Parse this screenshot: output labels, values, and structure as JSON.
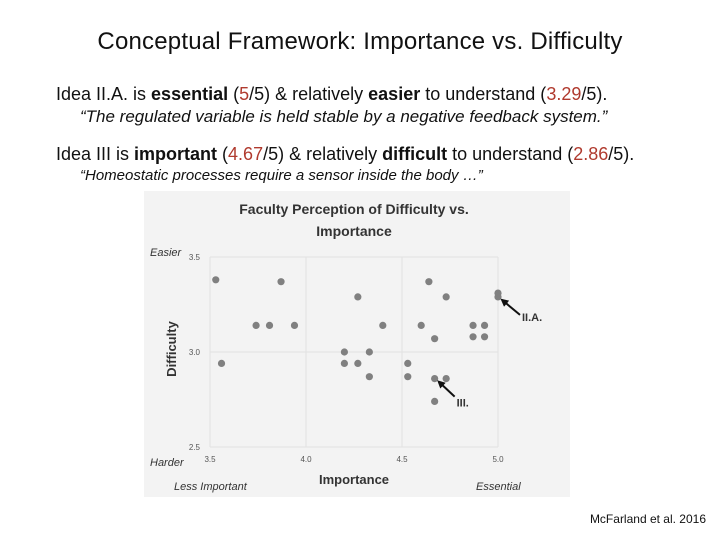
{
  "slide": {
    "title": "Conceptual Framework:  Importance vs. Difficulty",
    "line1": {
      "pre": "Idea II.A. is ",
      "w1": "essential",
      "p1": " (",
      "v1": "5",
      "s1": "/5) & relatively ",
      "w2": "easier",
      "p2": " to understand (",
      "v2": "3.29",
      "s2": "/5)."
    },
    "quote1": "“The regulated variable is held stable by a negative feedback system.”",
    "line2": {
      "pre": "Idea III is ",
      "w1": "important",
      "p1": " (",
      "v1": "4.67",
      "s1": "/5) & relatively ",
      "w2": "difficult",
      "p2": " to understand (",
      "v2": "2.86",
      "s2": "/5)."
    },
    "quote2": "“Homeostatic processes require a sensor inside the body …”",
    "citation": "McFarland et al. 2016",
    "highlight_color": "#b03a2e"
  },
  "chart_data": {
    "type": "scatter",
    "title": [
      "Faculty Perception of Difficulty vs.",
      "Importance"
    ],
    "xlabel": "Importance",
    "ylabel": "Difficulty",
    "xlim": [
      3.5,
      5.0
    ],
    "ylim": [
      2.5,
      3.5
    ],
    "xticks": [
      "3.5",
      "4.0",
      "4.5",
      "5.0"
    ],
    "yticks": [
      "3.5",
      "3.0",
      "2.5"
    ],
    "corner_labels": {
      "top_left": "Easier",
      "bottom_left": "Harder",
      "bottom_x_left": "Less Important",
      "bottom_x_right": "Essential"
    },
    "grid": true,
    "point_color": "#808080",
    "points": [
      {
        "x": 3.53,
        "y": 3.38
      },
      {
        "x": 3.56,
        "y": 2.94
      },
      {
        "x": 3.74,
        "y": 3.14
      },
      {
        "x": 3.81,
        "y": 3.14
      },
      {
        "x": 3.87,
        "y": 3.37
      },
      {
        "x": 3.94,
        "y": 3.14
      },
      {
        "x": 4.2,
        "y": 3.0
      },
      {
        "x": 4.2,
        "y": 2.94
      },
      {
        "x": 4.27,
        "y": 3.29
      },
      {
        "x": 4.27,
        "y": 2.94
      },
      {
        "x": 4.33,
        "y": 3.0
      },
      {
        "x": 4.33,
        "y": 2.87
      },
      {
        "x": 4.4,
        "y": 3.14
      },
      {
        "x": 4.53,
        "y": 2.94
      },
      {
        "x": 4.53,
        "y": 2.87
      },
      {
        "x": 4.6,
        "y": 3.14
      },
      {
        "x": 4.64,
        "y": 3.37
      },
      {
        "x": 4.67,
        "y": 3.07
      },
      {
        "x": 4.67,
        "y": 2.86
      },
      {
        "x": 4.67,
        "y": 2.74
      },
      {
        "x": 4.73,
        "y": 3.29
      },
      {
        "x": 4.73,
        "y": 2.86
      },
      {
        "x": 4.87,
        "y": 3.14
      },
      {
        "x": 4.87,
        "y": 3.08
      },
      {
        "x": 4.93,
        "y": 3.14
      },
      {
        "x": 4.93,
        "y": 3.08
      },
      {
        "x": 5.0,
        "y": 3.31
      },
      {
        "x": 5.0,
        "y": 3.29
      }
    ],
    "annotations": [
      {
        "text": "II.A.",
        "x": 5.0,
        "y": 3.29
      },
      {
        "text": "III.",
        "x": 4.67,
        "y": 2.86
      }
    ]
  }
}
